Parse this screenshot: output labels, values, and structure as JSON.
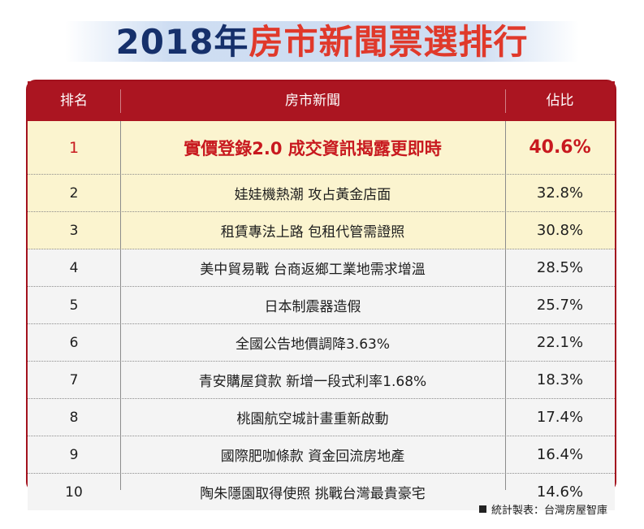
{
  "title": {
    "year": "2018年",
    "rest": "房市新聞票選排行"
  },
  "headers": {
    "rank": "排名",
    "news": "房市新聞",
    "pct": "佔比"
  },
  "rows": [
    {
      "rank": "1",
      "news": "實價登錄2.0 成交資訊揭露更即時",
      "pct": "40.6%"
    },
    {
      "rank": "2",
      "news": "娃娃機熱潮 攻占黃金店面",
      "pct": "32.8%"
    },
    {
      "rank": "3",
      "news": "租賃專法上路 包租代管需證照",
      "pct": "30.8%"
    },
    {
      "rank": "4",
      "news": "美中貿易戰 台商返鄉工業地需求增溫",
      "pct": "28.5%"
    },
    {
      "rank": "5",
      "news": "日本制震器造假",
      "pct": "25.7%"
    },
    {
      "rank": "6",
      "news": "全國公告地價調降3.63%",
      "pct": "22.1%"
    },
    {
      "rank": "7",
      "news": "青安購屋貸款 新增一段式利率1.68%",
      "pct": "18.3%"
    },
    {
      "rank": "8",
      "news": "桃園航空城計畫重新啟動",
      "pct": "17.4%"
    },
    {
      "rank": "9",
      "news": "國際肥咖條款 資金回流房地產",
      "pct": "16.4%"
    },
    {
      "rank": "10",
      "news": "陶朱隱園取得使照 挑戰台灣最貴豪宅",
      "pct": "14.6%"
    }
  ],
  "source": "統計製表：台灣房屋智庫"
}
